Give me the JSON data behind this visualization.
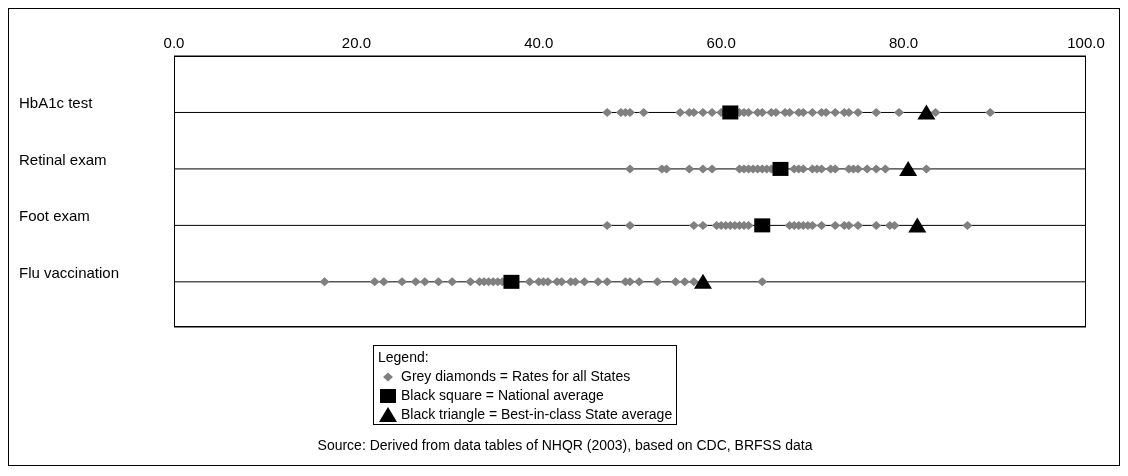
{
  "chart_data": {
    "type": "scatter",
    "orientation": "horizontal",
    "categories": [
      "HbA1c test",
      "Retinal exam",
      "Foot exam",
      "Flu vaccination"
    ],
    "xlim": [
      0,
      100
    ],
    "xticks": [
      {
        "value": 0,
        "label": "0.0"
      },
      {
        "value": 20,
        "label": "20.0"
      },
      {
        "value": 40,
        "label": "40.0"
      },
      {
        "value": 60,
        "label": "60.0"
      },
      {
        "value": 80,
        "label": "80.0"
      },
      {
        "value": 100,
        "label": "100.0"
      }
    ],
    "grid": "y",
    "legend": "bottom",
    "legend_title": "Legend:",
    "series": [
      {
        "name": "Grey diamonds = Rates for all States",
        "color": "#808080",
        "marker": "diamond",
        "values": [
          47.5,
          49,
          49.5,
          50,
          51.5,
          55.5,
          56.5,
          57,
          58,
          59,
          60,
          62,
          62.5,
          63,
          64,
          64.5,
          65.5,
          66,
          67,
          67.5,
          68.5,
          69,
          70,
          71,
          71.5,
          72.5,
          73.5,
          74,
          75,
          77,
          79.5,
          83.5,
          89.5,
          50,
          53.5,
          54,
          56.5,
          58,
          59,
          62,
          62.5,
          63,
          63.5,
          64,
          64.5,
          65,
          65.5,
          68,
          68.5,
          69,
          70,
          70.5,
          71,
          72,
          72.5,
          74,
          74.5,
          75,
          76,
          77,
          78,
          82.5,
          47.5,
          50,
          57,
          58,
          59.5,
          60,
          60.5,
          61,
          61.5,
          62,
          62.5,
          63,
          67.5,
          68,
          68.5,
          69,
          69.5,
          70,
          71,
          72.5,
          73.5,
          74,
          75,
          77,
          78.5,
          79,
          87,
          16.5,
          22,
          23,
          25,
          26.5,
          27.5,
          29,
          30.5,
          32.5,
          33.5,
          34,
          34.5,
          35,
          35.5,
          36,
          39,
          40,
          40.5,
          41,
          42,
          42.5,
          43.5,
          44,
          45,
          46.5,
          47.5,
          49.5,
          50,
          51,
          53,
          55,
          56,
          57,
          64.5
        ],
        "x": [
          "HbA1c test",
          "HbA1c test",
          "HbA1c test",
          "HbA1c test",
          "HbA1c test",
          "HbA1c test",
          "HbA1c test",
          "HbA1c test",
          "HbA1c test",
          "HbA1c test",
          "HbA1c test",
          "HbA1c test",
          "HbA1c test",
          "HbA1c test",
          "HbA1c test",
          "HbA1c test",
          "HbA1c test",
          "HbA1c test",
          "HbA1c test",
          "HbA1c test",
          "HbA1c test",
          "HbA1c test",
          "HbA1c test",
          "HbA1c test",
          "HbA1c test",
          "HbA1c test",
          "HbA1c test",
          "HbA1c test",
          "HbA1c test",
          "HbA1c test",
          "HbA1c test",
          "HbA1c test",
          "HbA1c test",
          "Retinal exam",
          "Retinal exam",
          "Retinal exam",
          "Retinal exam",
          "Retinal exam",
          "Retinal exam",
          "Retinal exam",
          "Retinal exam",
          "Retinal exam",
          "Retinal exam",
          "Retinal exam",
          "Retinal exam",
          "Retinal exam",
          "Retinal exam",
          "Retinal exam",
          "Retinal exam",
          "Retinal exam",
          "Retinal exam",
          "Retinal exam",
          "Retinal exam",
          "Retinal exam",
          "Retinal exam",
          "Retinal exam",
          "Retinal exam",
          "Retinal exam",
          "Retinal exam",
          "Retinal exam",
          "Retinal exam",
          "Retinal exam",
          "Foot exam",
          "Foot exam",
          "Foot exam",
          "Foot exam",
          "Foot exam",
          "Foot exam",
          "Foot exam",
          "Foot exam",
          "Foot exam",
          "Foot exam",
          "Foot exam",
          "Foot exam",
          "Foot exam",
          "Foot exam",
          "Foot exam",
          "Foot exam",
          "Foot exam",
          "Foot exam",
          "Foot exam",
          "Foot exam",
          "Foot exam",
          "Foot exam",
          "Foot exam",
          "Foot exam",
          "Foot exam",
          "Foot exam",
          "Foot exam",
          "Flu vaccination",
          "Flu vaccination",
          "Flu vaccination",
          "Flu vaccination",
          "Flu vaccination",
          "Flu vaccination",
          "Flu vaccination",
          "Flu vaccination",
          "Flu vaccination",
          "Flu vaccination",
          "Flu vaccination",
          "Flu vaccination",
          "Flu vaccination",
          "Flu vaccination",
          "Flu vaccination",
          "Flu vaccination",
          "Flu vaccination",
          "Flu vaccination",
          "Flu vaccination",
          "Flu vaccination",
          "Flu vaccination",
          "Flu vaccination",
          "Flu vaccination",
          "Flu vaccination",
          "Flu vaccination",
          "Flu vaccination",
          "Flu vaccination",
          "Flu vaccination",
          "Flu vaccination",
          "Flu vaccination",
          "Flu vaccination",
          "Flu vaccination",
          "Flu vaccination",
          "Flu vaccination"
        ]
      },
      {
        "name": "Black square = National average",
        "color": "#000000",
        "marker": "square",
        "values": [
          61,
          66.5,
          64.5,
          37
        ],
        "x": [
          "HbA1c test",
          "Retinal exam",
          "Foot exam",
          "Flu vaccination"
        ]
      },
      {
        "name": "Black triangle = Best-in-class State average",
        "color": "#000000",
        "marker": "triangle",
        "values": [
          82.5,
          80.5,
          81.5,
          58
        ],
        "x": [
          "HbA1c test",
          "Retinal exam",
          "Foot exam",
          "Flu vaccination"
        ]
      }
    ],
    "annotations": [
      "Source:  Derived from data tables of NHQR (2003), based on CDC, BRFSS data"
    ]
  }
}
